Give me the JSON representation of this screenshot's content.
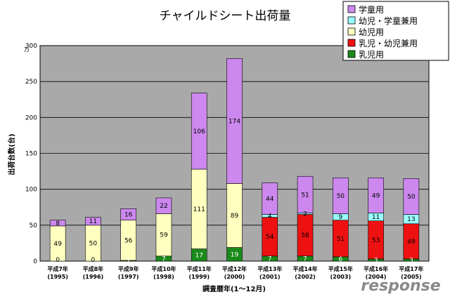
{
  "chart_data": {
    "type": "bar",
    "stacked": true,
    "title": "チャイルドシート出荷量",
    "ylabel": "出荷台数(台)",
    "yunit": "万",
    "xlabel": "調査暦年(1～12月)",
    "ylim": [
      0,
      300
    ],
    "yticks": [
      "0",
      "50",
      "100",
      "150",
      "200",
      "250",
      "300"
    ],
    "grid": true,
    "legend_position": "top-right",
    "categories": [
      {
        "era": "平成7年",
        "year": "(1995)"
      },
      {
        "era": "平成8年",
        "year": "(1996)"
      },
      {
        "era": "平成9年",
        "year": "(1997)"
      },
      {
        "era": "平成10年",
        "year": "(1998)"
      },
      {
        "era": "平成11年",
        "year": "(1999)"
      },
      {
        "era": "平成12年",
        "year": "(2000)"
      },
      {
        "era": "平成13年",
        "year": "(2001)"
      },
      {
        "era": "平成14年",
        "year": "(2002)"
      },
      {
        "era": "平成15年",
        "year": "(2003)"
      },
      {
        "era": "平成16年",
        "year": "(2004)"
      },
      {
        "era": "平成17年",
        "year": "(2005)"
      }
    ],
    "series": [
      {
        "name": "乳児用",
        "color": "#1a8a1a",
        "values": [
          0,
          0,
          1,
          7,
          17,
          19,
          7,
          7,
          6,
          3,
          3
        ]
      },
      {
        "name": "乳児・幼児兼用",
        "color": "#ee1111",
        "values": [
          0,
          0,
          0,
          0,
          0,
          0,
          54,
          58,
          51,
          53,
          49
        ]
      },
      {
        "name": "幼児用",
        "color": "#ffffc0",
        "values": [
          49,
          50,
          56,
          59,
          111,
          89,
          0,
          0,
          0,
          0,
          0
        ]
      },
      {
        "name": "幼児・学童兼用",
        "color": "#99ffff",
        "values": [
          0,
          0,
          0,
          0,
          0,
          0,
          4,
          2,
          9,
          11,
          13
        ]
      },
      {
        "name": "学童用",
        "color": "#cc88ee",
        "values": [
          8,
          11,
          16,
          22,
          106,
          174,
          44,
          51,
          50,
          49,
          50
        ]
      }
    ],
    "data_labels": [
      [
        "0",
        "",
        "49",
        "",
        "8"
      ],
      [
        "0",
        "",
        "50",
        "",
        "11"
      ],
      [
        "1",
        "",
        "56",
        "",
        "16"
      ],
      [
        "7",
        "",
        "59",
        "",
        "22"
      ],
      [
        "17",
        "",
        "111",
        "",
        "106"
      ],
      [
        "19",
        "",
        "89",
        "",
        "174"
      ],
      [
        "7",
        "54",
        "",
        "4",
        "44"
      ],
      [
        "7",
        "58",
        "",
        "2",
        "51"
      ],
      [
        "6",
        "51",
        "",
        "9",
        "50"
      ],
      [
        "3",
        "53",
        "",
        "11",
        "49"
      ],
      [
        "3",
        "49",
        "",
        "13",
        "50"
      ]
    ],
    "legend_order": [
      "学童用",
      "幼児・学童兼用",
      "幼児用",
      "乳児・幼児兼用",
      "乳児用"
    ]
  },
  "watermark": "response"
}
